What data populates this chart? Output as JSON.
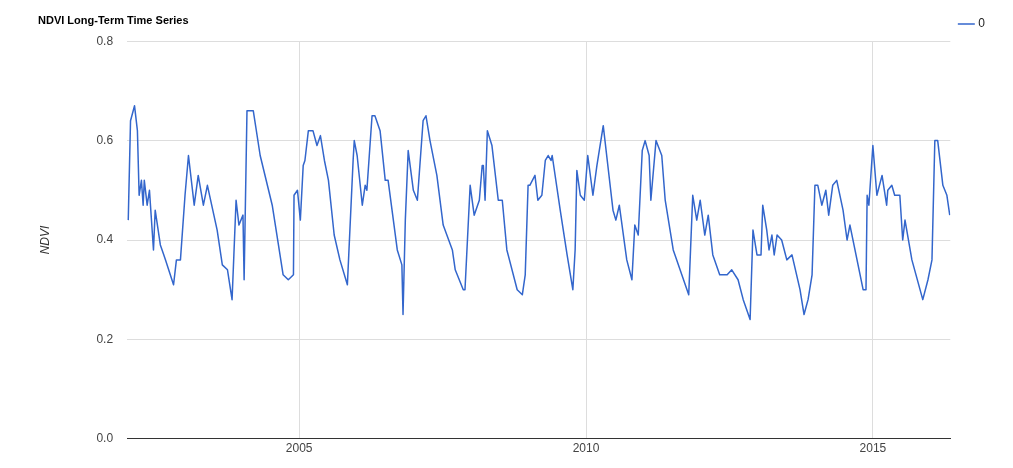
{
  "chart_data": {
    "type": "line",
    "title": "NDVI Long-Term Time Series",
    "ylabel": "NDVI",
    "x": [
      2002.02,
      2002.06,
      2002.13,
      2002.18,
      2002.21,
      2002.25,
      2002.28,
      2002.3,
      2002.35,
      2002.39,
      2002.46,
      2002.49,
      2002.58,
      2002.67,
      2002.81,
      2002.86,
      2002.93,
      2003.01,
      2003.07,
      2003.17,
      2003.24,
      2003.33,
      2003.4,
      2003.57,
      2003.66,
      2003.75,
      2003.83,
      2003.9,
      2003.95,
      2004.02,
      2004.04,
      2004.09,
      2004.2,
      2004.32,
      2004.53,
      2004.72,
      2004.81,
      2004.9,
      2004.91,
      2004.97,
      2005.02,
      2005.07,
      2005.1,
      2005.16,
      2005.24,
      2005.31,
      2005.37,
      2005.44,
      2005.51,
      2005.61,
      2005.71,
      2005.84,
      2005.85,
      2005.94,
      2005.96,
      2006.01,
      2006.1,
      2006.15,
      2006.18,
      2006.27,
      2006.32,
      2006.41,
      2006.5,
      2006.55,
      2006.71,
      2006.79,
      2006.81,
      2006.85,
      2006.9,
      2006.99,
      2007.06,
      2007.16,
      2007.21,
      2007.28,
      2007.4,
      2007.51,
      2007.67,
      2007.72,
      2007.86,
      2007.89,
      2007.98,
      2008.05,
      2008.14,
      2008.19,
      2008.21,
      2008.24,
      2008.28,
      2008.36,
      2008.47,
      2008.54,
      2008.62,
      2008.8,
      2008.89,
      2008.94,
      2008.99,
      2009.02,
      2009.11,
      2009.16,
      2009.23,
      2009.29,
      2009.34,
      2009.39,
      2009.41,
      2009.55,
      2009.67,
      2009.77,
      2009.81,
      2009.84,
      2009.9,
      2009.97,
      2010.03,
      2010.12,
      2010.19,
      2010.3,
      2010.37,
      2010.47,
      2010.52,
      2010.58,
      2010.71,
      2010.8,
      2010.85,
      2010.91,
      2010.98,
      2011.03,
      2011.1,
      2011.13,
      2011.22,
      2011.32,
      2011.38,
      2011.52,
      2011.76,
      2011.79,
      2011.86,
      2011.93,
      2011.99,
      2012.07,
      2012.13,
      2012.21,
      2012.33,
      2012.46,
      2012.54,
      2012.65,
      2012.74,
      2012.86,
      2012.91,
      2012.98,
      2013.05,
      2013.08,
      2013.15,
      2013.19,
      2013.24,
      2013.28,
      2013.33,
      2013.41,
      2013.5,
      2013.59,
      2013.73,
      2013.8,
      2013.87,
      2013.94,
      2013.99,
      2014.04,
      2014.11,
      2014.18,
      2014.23,
      2014.3,
      2014.37,
      2014.48,
      2014.55,
      2014.6,
      2014.83,
      2014.88,
      2014.9,
      2014.93,
      2015.0,
      2015.07,
      2015.16,
      2015.24,
      2015.26,
      2015.33,
      2015.38,
      2015.47,
      2015.52,
      2015.56,
      2015.68,
      2015.87,
      2015.96,
      2016.03,
      2016.08,
      2016.13,
      2016.22,
      2016.29,
      2016.34
    ],
    "series": [
      {
        "name": "0",
        "color": "#3366cc",
        "values": [
          0.44,
          0.64,
          0.67,
          0.62,
          0.49,
          0.52,
          0.47,
          0.52,
          0.47,
          0.5,
          0.38,
          0.46,
          0.39,
          0.36,
          0.31,
          0.36,
          0.36,
          0.49,
          0.57,
          0.47,
          0.53,
          0.47,
          0.51,
          0.42,
          0.35,
          0.34,
          0.28,
          0.48,
          0.43,
          0.45,
          0.32,
          0.66,
          0.66,
          0.57,
          0.47,
          0.33,
          0.32,
          0.33,
          0.49,
          0.5,
          0.44,
          0.55,
          0.56,
          0.62,
          0.62,
          0.59,
          0.61,
          0.56,
          0.52,
          0.41,
          0.36,
          0.31,
          0.31,
          0.56,
          0.6,
          0.57,
          0.47,
          0.51,
          0.5,
          0.65,
          0.65,
          0.62,
          0.52,
          0.52,
          0.38,
          0.35,
          0.25,
          0.44,
          0.58,
          0.5,
          0.48,
          0.64,
          0.65,
          0.6,
          0.53,
          0.43,
          0.38,
          0.34,
          0.3,
          0.3,
          0.51,
          0.45,
          0.48,
          0.55,
          0.55,
          0.48,
          0.62,
          0.59,
          0.48,
          0.48,
          0.38,
          0.3,
          0.29,
          0.33,
          0.51,
          0.51,
          0.53,
          0.48,
          0.49,
          0.56,
          0.57,
          0.56,
          0.57,
          0.46,
          0.37,
          0.3,
          0.38,
          0.54,
          0.49,
          0.48,
          0.57,
          0.49,
          0.55,
          0.63,
          0.56,
          0.46,
          0.44,
          0.47,
          0.36,
          0.32,
          0.43,
          0.41,
          0.58,
          0.6,
          0.57,
          0.48,
          0.6,
          0.57,
          0.48,
          0.38,
          0.3,
          0.29,
          0.49,
          0.44,
          0.48,
          0.41,
          0.45,
          0.37,
          0.33,
          0.33,
          0.34,
          0.32,
          0.28,
          0.24,
          0.42,
          0.37,
          0.37,
          0.47,
          0.42,
          0.38,
          0.41,
          0.37,
          0.41,
          0.4,
          0.36,
          0.37,
          0.3,
          0.25,
          0.28,
          0.33,
          0.51,
          0.51,
          0.47,
          0.5,
          0.45,
          0.51,
          0.52,
          0.46,
          0.4,
          0.43,
          0.3,
          0.3,
          0.49,
          0.47,
          0.59,
          0.49,
          0.53,
          0.47,
          0.5,
          0.51,
          0.49,
          0.49,
          0.4,
          0.44,
          0.36,
          0.28,
          0.32,
          0.36,
          0.6,
          0.6,
          0.51,
          0.49,
          0.45
        ]
      }
    ],
    "xlim": [
      2002.0,
      2016.35
    ],
    "xticks": [
      2005,
      2010,
      2015
    ],
    "ylim": [
      0,
      0.8
    ],
    "yticks": [
      {
        "value": 0,
        "label": "0.0"
      },
      {
        "value": 0.2,
        "label": "0.2"
      },
      {
        "value": 0.4,
        "label": "0.4"
      },
      {
        "value": 0.6,
        "label": "0.6"
      },
      {
        "value": 0.8,
        "label": "0.8"
      }
    ],
    "grid": true,
    "legend": "top right",
    "marker": "none",
    "line_style": "solid"
  }
}
